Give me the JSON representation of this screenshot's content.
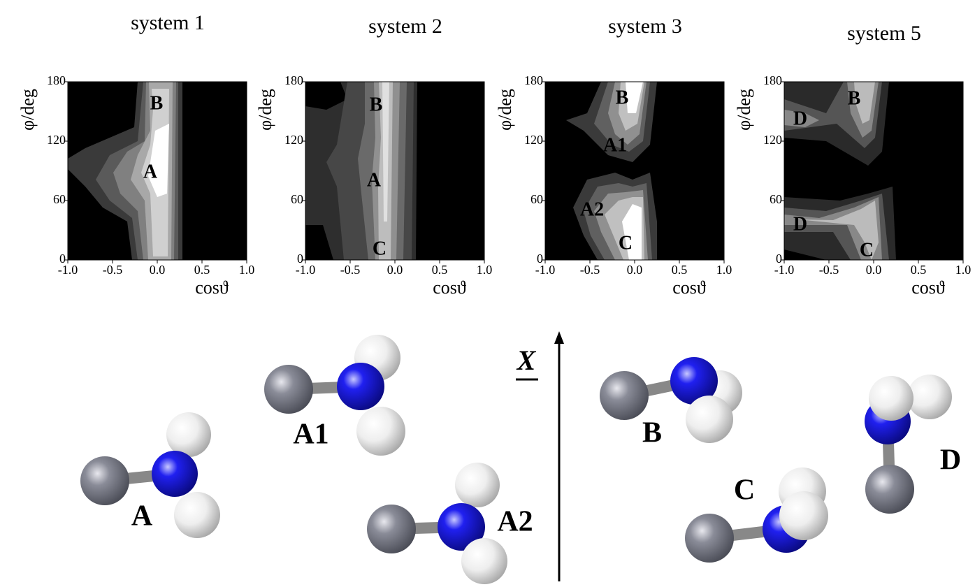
{
  "chart_data": [
    {
      "type": "contour",
      "title": "system 1",
      "x_label": "cosϑ",
      "y_label": "φ/deg",
      "xlim": [
        -1,
        1
      ],
      "ylim": [
        0,
        180
      ],
      "xticks": [
        {
          "value": -1,
          "label": "-1.0"
        },
        -0.5,
        {
          "value": 0,
          "label": "0.0"
        },
        0.5,
        {
          "value": 1,
          "label": "1.0"
        }
      ],
      "yticks": [
        0,
        60,
        120,
        180
      ],
      "annotations": [
        "B",
        "A"
      ]
    },
    {
      "type": "contour",
      "title": "system 2",
      "x_label": "cosϑ",
      "y_label": "φ/deg",
      "xlim": [
        -1,
        1
      ],
      "ylim": [
        0,
        180
      ],
      "xticks": [
        {
          "value": -1,
          "label": "-1.0"
        },
        -0.5,
        {
          "value": 0,
          "label": "0.0"
        },
        0.5,
        {
          "value": 1,
          "label": "1.0"
        }
      ],
      "yticks": [
        0,
        60,
        120,
        180
      ],
      "annotations": [
        "B",
        "A",
        "C"
      ]
    },
    {
      "type": "contour",
      "title": "system 3",
      "x_label": "cosϑ",
      "y_label": "φ/deg",
      "xlim": [
        -1,
        1
      ],
      "ylim": [
        0,
        180
      ],
      "xticks": [
        {
          "value": -1,
          "label": "-1.0"
        },
        -0.5,
        {
          "value": 0,
          "label": "0.0"
        },
        0.5,
        {
          "value": 1,
          "label": "1.0"
        }
      ],
      "yticks": [
        0,
        60,
        120,
        180
      ],
      "annotations": [
        "B",
        "A1",
        "A2",
        "C"
      ]
    },
    {
      "type": "contour",
      "title": "system 5",
      "x_label": "cosϑ",
      "y_label": "φ/deg",
      "xlim": [
        -1,
        1
      ],
      "ylim": [
        0,
        180
      ],
      "xticks": [
        {
          "value": -1,
          "label": "-1.0"
        },
        -0.5,
        {
          "value": 0,
          "label": "0.0"
        },
        0.5,
        {
          "value": 1,
          "label": "1.0"
        }
      ],
      "yticks": [
        0,
        60,
        120,
        180
      ],
      "annotations": [
        "D",
        "B",
        "D",
        "C"
      ]
    }
  ],
  "structures": {
    "axis_label": "X",
    "labels": [
      "A",
      "A1",
      "A2",
      "B",
      "C",
      "D"
    ]
  }
}
